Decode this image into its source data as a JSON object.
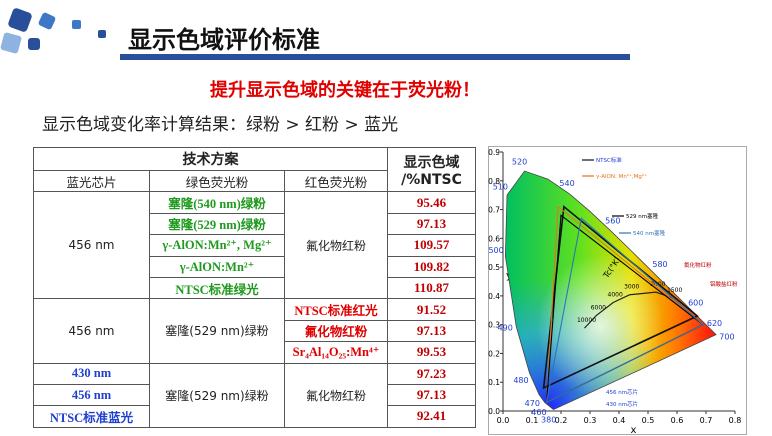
{
  "header": {
    "title": "显示色域评价标准",
    "subtitle": "提升显示色域的关键在于荧光粉！",
    "note": "显示色域变化率计算结果：绿粉 > 红粉 > 蓝光"
  },
  "table": {
    "scheme": "技术方案",
    "gamut_line1": "显示色域",
    "gamut_line2": "/%NTSC",
    "columns": [
      "蓝光芯片",
      "绿色荧光粉",
      "红色荧光粉"
    ],
    "groups": [
      {
        "highlight": "green",
        "highlight_color": "#1e9a1e",
        "blue": [
          "456 nm"
        ],
        "green": [
          "塞隆(540 nm)绿粉",
          "塞隆(529 nm)绿粉",
          "γ-AlON:Mn²⁺, Mg²⁺",
          "γ-AlON:Mn²⁺",
          "NTSC标准绿光"
        ],
        "red": [
          "氟化物红粉"
        ],
        "values": [
          95.46,
          97.13,
          109.57,
          109.82,
          110.87
        ]
      },
      {
        "highlight": "red",
        "highlight_color": "#e00000",
        "blue": [
          "456 nm"
        ],
        "green": [
          "塞隆(529 nm)绿粉"
        ],
        "red": [
          "NTSC标准红光",
          "氟化物红粉",
          "Sr₄Al₁₄O₂₅:Mn⁴⁺"
        ],
        "values": [
          91.52,
          97.13,
          99.53
        ]
      },
      {
        "highlight": "blue",
        "highlight_color": "#1f3fd0",
        "blue": [
          "430 nm",
          "456 nm",
          "NTSC标准蓝光"
        ],
        "green": [
          "塞隆(529 nm)绿粉"
        ],
        "red": [
          "氟化物红粉"
        ],
        "values": [
          97.23,
          97.13,
          92.41
        ]
      }
    ]
  },
  "chart_data": {
    "type": "cie",
    "x_label": "x",
    "y_label": "y",
    "xlim": [
      0,
      0.8
    ],
    "ylim": [
      0,
      0.9
    ],
    "xticks": [
      {
        "value": 0,
        "label": "0.0"
      },
      0.1,
      0.2,
      0.3,
      0.4,
      0.5,
      0.6,
      0.7,
      0.8
    ],
    "yticks": [
      {
        "value": 0,
        "label": "0.0"
      },
      0.1,
      0.2,
      0.3,
      0.4,
      0.5,
      0.6,
      0.7,
      0.8,
      0.9
    ],
    "locus": {
      "labels": [
        "380",
        "460",
        "470",
        "480",
        "490",
        "500",
        "510",
        "520",
        null,
        "540",
        null,
        "560",
        null,
        "580",
        null,
        "600",
        "620",
        "700"
      ],
      "x": [
        0.1741,
        0.144,
        0.1241,
        0.0913,
        0.0454,
        0.0082,
        0.0139,
        0.0743,
        0.1547,
        0.2296,
        0.3016,
        0.3731,
        0.4441,
        0.5125,
        0.5752,
        0.627,
        0.6915,
        0.7347
      ],
      "y": [
        0.005,
        0.0297,
        0.0578,
        0.1327,
        0.295,
        0.5384,
        0.7502,
        0.8338,
        0.8059,
        0.7543,
        0.6923,
        0.6245,
        0.5547,
        0.4866,
        0.4242,
        0.3725,
        0.3083,
        0.2653
      ]
    },
    "planck": {
      "label": "Tc(°K)",
      "temps": [
        10000,
        6000,
        4000,
        3000,
        2000,
        1500
      ],
      "x": [
        0.281,
        0.322,
        0.38,
        0.437,
        0.527,
        0.585
      ],
      "y": [
        0.288,
        0.332,
        0.377,
        0.404,
        0.413,
        0.393
      ]
    },
    "series": [
      {
        "name": "NTSC标准",
        "color": "#111111",
        "x": [
          0.67,
          0.21,
          0.14
        ],
        "y": [
          0.33,
          0.71,
          0.08
        ]
      },
      {
        "name": "γ-AlON: Mn²⁺,Mg²⁺",
        "color": "#e8731a",
        "x": [
          0.69,
          0.19,
          0.15
        ],
        "y": [
          0.3,
          0.71,
          0.03
        ]
      },
      {
        "name": "529 nm塞隆",
        "color": "#000000",
        "x": [
          0.69,
          0.2,
          0.15
        ],
        "y": [
          0.3,
          0.68,
          0.03
        ]
      },
      {
        "name": "540 nm塞隆",
        "color": "#2e75b6",
        "x": [
          0.69,
          0.27,
          0.15
        ],
        "y": [
          0.3,
          0.67,
          0.03
        ]
      }
    ],
    "side_labels": [
      "氟化物红粉",
      "铝酸盐红粉",
      "456 nm芯片",
      "430 nm芯片"
    ]
  }
}
